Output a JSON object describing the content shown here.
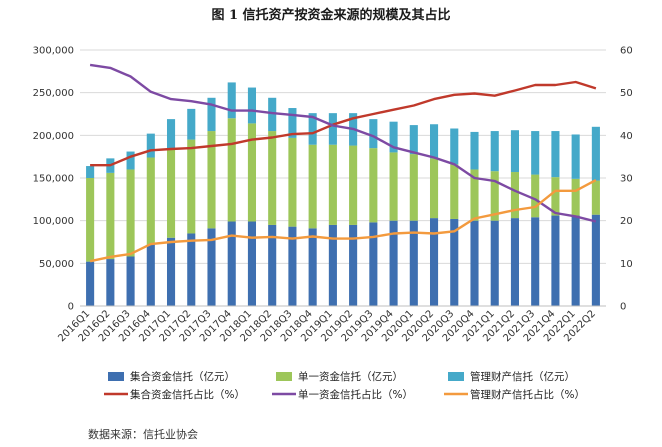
{
  "chart_data": {
    "type": "bar",
    "title": "图 1    信托资产按资金来源的规模及其占比",
    "source": "数据来源：信托业协会",
    "categories": [
      "2016Q1",
      "2016Q2",
      "2016Q3",
      "2016Q4",
      "2017Q1",
      "2017Q2",
      "2017Q3",
      "2017Q4",
      "2018Q1",
      "2018Q2",
      "2018Q3",
      "2018Q4",
      "2019Q1",
      "2019Q2",
      "2019Q3",
      "2019Q4",
      "2020Q1",
      "2020Q2",
      "2020Q3",
      "2020Q4",
      "2021Q1",
      "2021Q2",
      "2021Q3",
      "2021Q4",
      "2022Q1",
      "2022Q2"
    ],
    "y_left": {
      "ticks": [
        "0",
        "50,000",
        "100,000",
        "150,000",
        "200,000",
        "250,000",
        "300,000"
      ],
      "ylim": [
        0,
        300000
      ]
    },
    "y_right": {
      "ticks": [
        "0",
        "10",
        "20",
        "30",
        "40",
        "50",
        "60"
      ],
      "ylim": [
        0,
        60
      ]
    },
    "bar_series": [
      {
        "name": "集合资金信托（亿元）",
        "color": "#3e6fb0",
        "values": [
          52000,
          55000,
          58000,
          72000,
          80000,
          85000,
          91000,
          99000,
          99000,
          95000,
          93000,
          91000,
          95000,
          95000,
          98000,
          100000,
          100000,
          103000,
          102000,
          100000,
          100000,
          103000,
          104000,
          106000,
          106000,
          107000
        ]
      },
      {
        "name": "单一资金信托（亿元）",
        "color": "#9dc65a",
        "values": [
          98000,
          101000,
          102000,
          102000,
          104000,
          110000,
          114000,
          121000,
          115000,
          110000,
          104000,
          98000,
          94000,
          93000,
          87000,
          80000,
          78000,
          70000,
          64000,
          60000,
          58000,
          54000,
          50000,
          45000,
          43000,
          40000
        ]
      },
      {
        "name": "管理财产信托（亿元）",
        "color": "#45a9c9",
        "values": [
          14000,
          17000,
          21000,
          28000,
          35000,
          36000,
          39000,
          42000,
          42000,
          39000,
          35000,
          37000,
          37000,
          38000,
          34000,
          36000,
          34000,
          40000,
          42000,
          44000,
          47000,
          49000,
          51000,
          54000,
          52000,
          63000
        ]
      }
    ],
    "line_series": [
      {
        "name": "集合资金信托占比（%）",
        "color": "#c0392b",
        "values": [
          33,
          33,
          35,
          36.5,
          36.8,
          37,
          37.5,
          38,
          39,
          39.5,
          40.3,
          40.5,
          42.5,
          44,
          45,
          46,
          47,
          48.5,
          49.5,
          49.8,
          49.3,
          50.5,
          51.8,
          51.8,
          52.5,
          51
        ]
      },
      {
        "name": "单一资金信托占比（%）",
        "color": "#7d4aa3",
        "values": [
          56.5,
          55.8,
          53.8,
          50.2,
          48.5,
          48,
          47.2,
          45.8,
          45.8,
          45.2,
          44.8,
          44.3,
          42.3,
          41.5,
          39.8,
          37.2,
          36,
          34.8,
          33.2,
          30,
          29.3,
          27,
          25,
          21.8,
          21,
          19.8
        ]
      },
      {
        "name": "管理财产信托占比（%）",
        "color": "#f39a3e",
        "values": [
          10.5,
          11.5,
          12.2,
          14.5,
          15,
          15.3,
          15.5,
          16.5,
          16,
          16.2,
          15.8,
          16.3,
          15.8,
          15.8,
          16.2,
          17,
          17.2,
          17,
          17.5,
          20.5,
          21.5,
          22.5,
          23.2,
          27,
          27,
          29.5
        ]
      }
    ],
    "legend_position": "bottom"
  }
}
